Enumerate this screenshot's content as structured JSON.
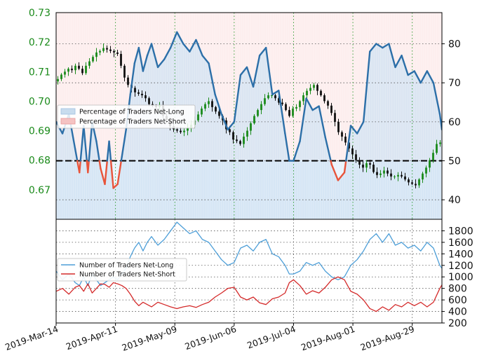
{
  "chart_data": [
    {
      "type": "line",
      "panel": "top",
      "x_axis": {
        "type": "date",
        "range": [
          "2019-03-14",
          "2019-09-12"
        ],
        "tick_dates": [
          "2019-03-14",
          "2019-04-11",
          "2019-05-09",
          "2019-06-06",
          "2019-07-04",
          "2019-08-01",
          "2019-08-29"
        ],
        "tick_labels": [
          "2019-Mar-14",
          "2019-Apr-11",
          "2019-May-09",
          "2019-Jun-06",
          "2019-Jul-04",
          "2019-Aug-01",
          "2019-Aug-29"
        ]
      },
      "y_left": {
        "range": [
          0.66,
          0.73
        ],
        "ticks": [
          0.67,
          0.68,
          0.69,
          0.7,
          0.71,
          0.72,
          0.73
        ],
        "tick_labels": [
          "0.67",
          "0.68",
          "0.69",
          "0.70",
          "0.71",
          "0.72",
          "0.73"
        ],
        "color": "#1a8a1a"
      },
      "y_right": {
        "range": [
          35,
          88
        ],
        "ticks": [
          40,
          50,
          60,
          70,
          80
        ],
        "tick_labels": [
          "40",
          "50",
          "60",
          "70",
          "80"
        ]
      },
      "grid": true,
      "reference_line": 50,
      "legend": {
        "placement": "center-left",
        "entries": [
          "Percentage of Traders Net-Long",
          "Percentage of Traders Net-Short"
        ]
      },
      "series": [
        {
          "name": "Percentage of Traders Net-Long",
          "axis": "right",
          "color": "#2c6fa8",
          "below_50_color": "#e8543a",
          "x": [
            "2019-03-14",
            "2019-03-17",
            "2019-03-20",
            "2019-03-23",
            "2019-03-25",
            "2019-03-27",
            "2019-03-29",
            "2019-03-31",
            "2019-04-02",
            "2019-04-04",
            "2019-04-06",
            "2019-04-08",
            "2019-04-10",
            "2019-04-12",
            "2019-04-14",
            "2019-04-16",
            "2019-04-18",
            "2019-04-20",
            "2019-04-22",
            "2019-04-24",
            "2019-04-26",
            "2019-04-28",
            "2019-05-01",
            "2019-05-04",
            "2019-05-07",
            "2019-05-10",
            "2019-05-13",
            "2019-05-16",
            "2019-05-19",
            "2019-05-22",
            "2019-05-25",
            "2019-05-28",
            "2019-05-31",
            "2019-06-03",
            "2019-06-06",
            "2019-06-09",
            "2019-06-12",
            "2019-06-15",
            "2019-06-18",
            "2019-06-21",
            "2019-06-24",
            "2019-06-27",
            "2019-06-30",
            "2019-07-02",
            "2019-07-04",
            "2019-07-07",
            "2019-07-10",
            "2019-07-13",
            "2019-07-16",
            "2019-07-19",
            "2019-07-22",
            "2019-07-25",
            "2019-07-28",
            "2019-07-31",
            "2019-08-03",
            "2019-08-06",
            "2019-08-09",
            "2019-08-12",
            "2019-08-15",
            "2019-08-18",
            "2019-08-21",
            "2019-08-24",
            "2019-08-27",
            "2019-08-30",
            "2019-09-02",
            "2019-09-05",
            "2019-09-08",
            "2019-09-11",
            "2019-09-12"
          ],
          "values": [
            60,
            57,
            62,
            53,
            47,
            59,
            47,
            60,
            55,
            48,
            44,
            55,
            43,
            44,
            51,
            58,
            67,
            75,
            79,
            73,
            77,
            80,
            74,
            76,
            79,
            83,
            80,
            78,
            81,
            77,
            75,
            67,
            62,
            58,
            60,
            72,
            74,
            69,
            77,
            79,
            67,
            68,
            57,
            50,
            50,
            55,
            66,
            63,
            64,
            56,
            49,
            45,
            47,
            59,
            57,
            60,
            78,
            80,
            79,
            80,
            74,
            77,
            72,
            73,
            70,
            73,
            70,
            62,
            58
          ]
        }
      ]
    },
    {
      "type": "candlestick",
      "panel": "top",
      "axis": "left",
      "description_of_series": "price",
      "up_color": "#1a8a1a",
      "down_color": "#111111",
      "x_range": [
        "2019-03-14",
        "2019-09-12"
      ],
      "close": [
        0.7075,
        0.709,
        0.71,
        0.711,
        0.7105,
        0.712,
        0.711,
        0.7095,
        0.712,
        0.7135,
        0.715,
        0.7165,
        0.717,
        0.718,
        0.7175,
        0.717,
        0.7165,
        0.716,
        0.712,
        0.708,
        0.7055,
        0.7045,
        0.703,
        0.7025,
        0.702,
        0.701,
        0.699,
        0.6985,
        0.698,
        0.6985,
        0.695,
        0.6935,
        0.6915,
        0.6905,
        0.69,
        0.6895,
        0.69,
        0.691,
        0.692,
        0.6935,
        0.6955,
        0.6975,
        0.699,
        0.7,
        0.698,
        0.6965,
        0.695,
        0.6935,
        0.6905,
        0.6895,
        0.687,
        0.6865,
        0.6855,
        0.688,
        0.69,
        0.6925,
        0.695,
        0.697,
        0.699,
        0.701,
        0.702,
        0.702,
        0.701,
        0.6995,
        0.699,
        0.697,
        0.695,
        0.6975,
        0.698,
        0.7,
        0.702,
        0.7035,
        0.7045,
        0.7055,
        0.7035,
        0.702,
        0.7,
        0.6985,
        0.696,
        0.693,
        0.6895,
        0.688,
        0.686,
        0.684,
        0.682,
        0.68,
        0.6785,
        0.6775,
        0.679,
        0.6785,
        0.676,
        0.675,
        0.6755,
        0.6765,
        0.6755,
        0.6745,
        0.6745,
        0.675,
        0.6745,
        0.6735,
        0.6725,
        0.672,
        0.6715,
        0.6735,
        0.6755,
        0.6775,
        0.68,
        0.6825,
        0.6855,
        0.686
      ]
    },
    {
      "type": "line",
      "panel": "bottom",
      "y_right": {
        "range": [
          200,
          2000
        ],
        "ticks": [
          200,
          400,
          600,
          800,
          1000,
          1200,
          1400,
          1600,
          1800
        ],
        "tick_labels": [
          "200",
          "400",
          "600",
          "800",
          "1000",
          "1200",
          "1400",
          "1600",
          "1800"
        ]
      },
      "grid": true,
      "legend": {
        "placement": "center-left",
        "entries": [
          "Number of Traders Net-Long",
          "Number of Traders Net-Short"
        ]
      },
      "series": [
        {
          "name": "Number of Traders Net-Long",
          "color": "#4e9fd8",
          "x": [
            "2019-03-14",
            "2019-03-17",
            "2019-03-20",
            "2019-03-23",
            "2019-03-25",
            "2019-03-27",
            "2019-03-29",
            "2019-03-31",
            "2019-04-02",
            "2019-04-04",
            "2019-04-06",
            "2019-04-08",
            "2019-04-10",
            "2019-04-12",
            "2019-04-14",
            "2019-04-16",
            "2019-04-18",
            "2019-04-20",
            "2019-04-22",
            "2019-04-24",
            "2019-04-26",
            "2019-04-28",
            "2019-05-01",
            "2019-05-04",
            "2019-05-07",
            "2019-05-10",
            "2019-05-13",
            "2019-05-16",
            "2019-05-19",
            "2019-05-22",
            "2019-05-25",
            "2019-05-28",
            "2019-05-31",
            "2019-06-03",
            "2019-06-06",
            "2019-06-09",
            "2019-06-12",
            "2019-06-15",
            "2019-06-18",
            "2019-06-21",
            "2019-06-24",
            "2019-06-27",
            "2019-06-30",
            "2019-07-02",
            "2019-07-04",
            "2019-07-07",
            "2019-07-10",
            "2019-07-13",
            "2019-07-16",
            "2019-07-19",
            "2019-07-22",
            "2019-07-25",
            "2019-07-28",
            "2019-07-31",
            "2019-08-03",
            "2019-08-06",
            "2019-08-09",
            "2019-08-12",
            "2019-08-15",
            "2019-08-18",
            "2019-08-21",
            "2019-08-24",
            "2019-08-27",
            "2019-08-30",
            "2019-09-02",
            "2019-09-05",
            "2019-09-08",
            "2019-09-11",
            "2019-09-12"
          ],
          "values": [
            1100,
            950,
            1050,
            900,
            850,
            1000,
            850,
            1050,
            950,
            850,
            900,
            950,
            1000,
            950,
            1050,
            1150,
            1350,
            1500,
            1600,
            1450,
            1600,
            1700,
            1550,
            1650,
            1800,
            1950,
            1850,
            1750,
            1800,
            1650,
            1600,
            1450,
            1300,
            1200,
            1250,
            1500,
            1550,
            1450,
            1600,
            1650,
            1400,
            1350,
            1200,
            1050,
            1050,
            1100,
            1250,
            1200,
            1250,
            1100,
            1000,
            950,
            1000,
            1200,
            1300,
            1450,
            1650,
            1750,
            1600,
            1750,
            1550,
            1600,
            1500,
            1550,
            1450,
            1600,
            1500,
            1200,
            1150
          ]
        },
        {
          "name": "Number of Traders Net-Short",
          "color": "#d42a2a",
          "x": [
            "2019-03-14",
            "2019-03-17",
            "2019-03-20",
            "2019-03-23",
            "2019-03-25",
            "2019-03-27",
            "2019-03-29",
            "2019-03-31",
            "2019-04-02",
            "2019-04-04",
            "2019-04-06",
            "2019-04-08",
            "2019-04-10",
            "2019-04-12",
            "2019-04-14",
            "2019-04-16",
            "2019-04-18",
            "2019-04-20",
            "2019-04-22",
            "2019-04-24",
            "2019-04-26",
            "2019-04-28",
            "2019-05-01",
            "2019-05-04",
            "2019-05-07",
            "2019-05-10",
            "2019-05-13",
            "2019-05-16",
            "2019-05-19",
            "2019-05-22",
            "2019-05-25",
            "2019-05-28",
            "2019-05-31",
            "2019-06-03",
            "2019-06-06",
            "2019-06-09",
            "2019-06-12",
            "2019-06-15",
            "2019-06-18",
            "2019-06-21",
            "2019-06-24",
            "2019-06-27",
            "2019-06-30",
            "2019-07-02",
            "2019-07-04",
            "2019-07-07",
            "2019-07-10",
            "2019-07-13",
            "2019-07-16",
            "2019-07-19",
            "2019-07-22",
            "2019-07-25",
            "2019-07-28",
            "2019-07-31",
            "2019-08-03",
            "2019-08-06",
            "2019-08-09",
            "2019-08-12",
            "2019-08-15",
            "2019-08-18",
            "2019-08-21",
            "2019-08-24",
            "2019-08-27",
            "2019-08-30",
            "2019-09-02",
            "2019-09-05",
            "2019-09-08",
            "2019-09-11",
            "2019-09-12"
          ],
          "values": [
            750,
            800,
            700,
            820,
            850,
            750,
            880,
            720,
            800,
            880,
            870,
            820,
            900,
            880,
            850,
            800,
            700,
            580,
            500,
            560,
            520,
            480,
            560,
            520,
            480,
            450,
            480,
            500,
            470,
            520,
            560,
            650,
            720,
            800,
            820,
            650,
            600,
            650,
            550,
            520,
            620,
            650,
            720,
            900,
            950,
            850,
            700,
            760,
            720,
            820,
            950,
            1000,
            950,
            750,
            700,
            600,
            450,
            400,
            480,
            420,
            520,
            480,
            560,
            500,
            560,
            480,
            560,
            800,
            860
          ]
        }
      ]
    }
  ]
}
